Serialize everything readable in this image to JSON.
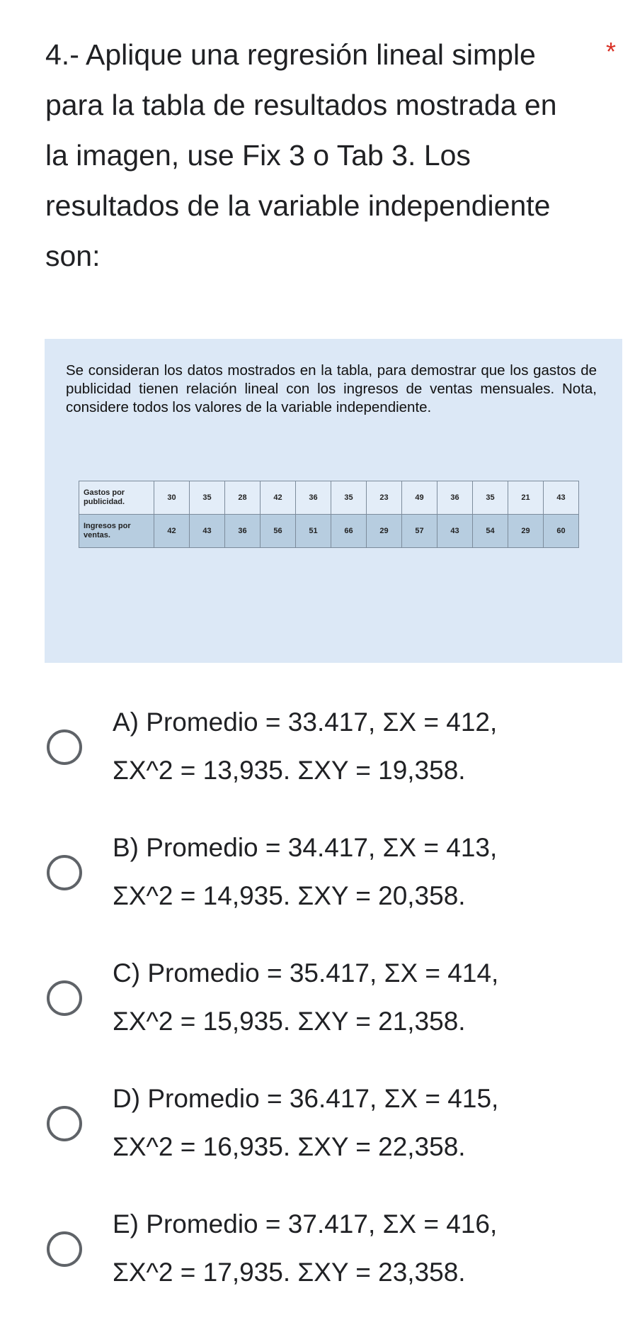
{
  "question": {
    "text": "4.- Aplique una regresión lineal simple para la tabla de resultados mostrada en la imagen, use Fix 3 o Tab 3. Los resultados de la variable independiente son:",
    "required_marker": "*"
  },
  "image": {
    "intro": "Se consideran los datos mostrados en la tabla, para demostrar que los gastos de publicidad tienen relación lineal con los ingresos de ventas mensuales. Nota, considere todos los valores de la variable independiente.",
    "table": {
      "row1_header": "Gastos por publicidad.",
      "row1": [
        "30",
        "35",
        "28",
        "42",
        "36",
        "35",
        "23",
        "49",
        "36",
        "35",
        "21",
        "43"
      ],
      "row2_header": "Ingresos por ventas.",
      "row2": [
        "42",
        "43",
        "36",
        "56",
        "51",
        "66",
        "29",
        "57",
        "43",
        "54",
        "29",
        "60"
      ]
    }
  },
  "options": [
    {
      "line1": "A) Promedio = 33.417, ΣX = 412,",
      "line2": "ΣX^2 = 13,935. ΣXY = 19,358."
    },
    {
      "line1": "B) Promedio = 34.417, ΣX = 413,",
      "line2": "ΣX^2 = 14,935. ΣXY = 20,358."
    },
    {
      "line1": "C) Promedio = 35.417, ΣX = 414,",
      "line2": "ΣX^2 = 15,935. ΣXY = 21,358."
    },
    {
      "line1": "D) Promedio = 36.417, ΣX = 415,",
      "line2": "ΣX^2 = 16,935. ΣXY = 22,358."
    },
    {
      "line1": "E) Promedio = 37.417, ΣX = 416,",
      "line2": "ΣX^2 = 17,935. ΣXY = 23,358."
    }
  ]
}
